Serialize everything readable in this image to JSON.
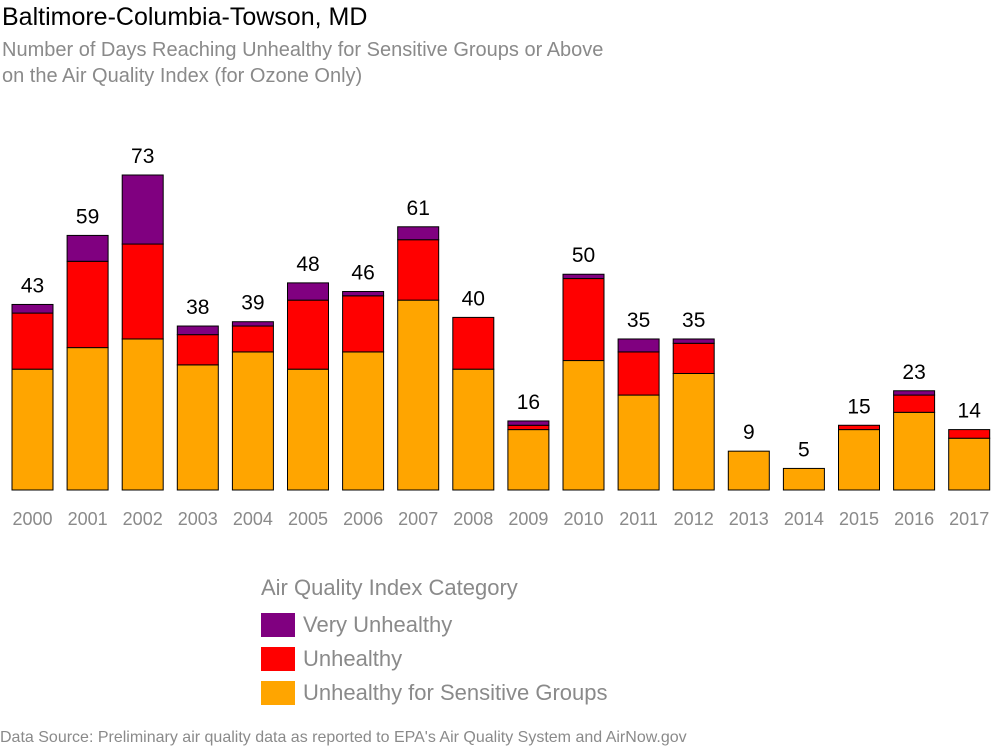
{
  "title": "Baltimore-Columbia-Towson, MD",
  "subtitle": "Number of Days Reaching Unhealthy for Sensitive Groups or Above\non the Air Quality Index (for Ozone Only)",
  "source": "Data Source: Preliminary air quality data as reported to EPA's Air Quality System and AirNow.gov",
  "legend": {
    "title": "Air Quality Index Category",
    "items": [
      {
        "label": "Very Unhealthy",
        "color": "#800080"
      },
      {
        "label": "Unhealthy",
        "color": "#ff0000"
      },
      {
        "label": "Unhealthy for Sensitive Groups",
        "color": "#ffa500"
      }
    ]
  },
  "chart_data": {
    "type": "bar",
    "stacked": true,
    "categories": [
      "2000",
      "2001",
      "2002",
      "2003",
      "2004",
      "2005",
      "2006",
      "2007",
      "2008",
      "2009",
      "2010",
      "2011",
      "2012",
      "2013",
      "2014",
      "2015",
      "2016",
      "2017"
    ],
    "series": [
      {
        "name": "Unhealthy for Sensitive Groups",
        "color": "#ffa500",
        "values": [
          28,
          33,
          35,
          29,
          32,
          28,
          32,
          44,
          28,
          14,
          30,
          22,
          27,
          9,
          5,
          14,
          18,
          12
        ]
      },
      {
        "name": "Unhealthy",
        "color": "#ff0000",
        "values": [
          13,
          20,
          22,
          7,
          6,
          16,
          13,
          14,
          12,
          1,
          19,
          10,
          7,
          0,
          0,
          1,
          4,
          2
        ]
      },
      {
        "name": "Very Unhealthy",
        "color": "#800080",
        "values": [
          2,
          6,
          16,
          2,
          1,
          4,
          1,
          3,
          0,
          1,
          1,
          3,
          1,
          0,
          0,
          0,
          1,
          0
        ]
      }
    ],
    "totals": [
      43,
      59,
      73,
      38,
      39,
      48,
      46,
      61,
      40,
      16,
      50,
      35,
      35,
      9,
      5,
      15,
      23,
      14
    ],
    "ylim": [
      0,
      73
    ],
    "grid": false,
    "legend_position": "bottom-center"
  }
}
